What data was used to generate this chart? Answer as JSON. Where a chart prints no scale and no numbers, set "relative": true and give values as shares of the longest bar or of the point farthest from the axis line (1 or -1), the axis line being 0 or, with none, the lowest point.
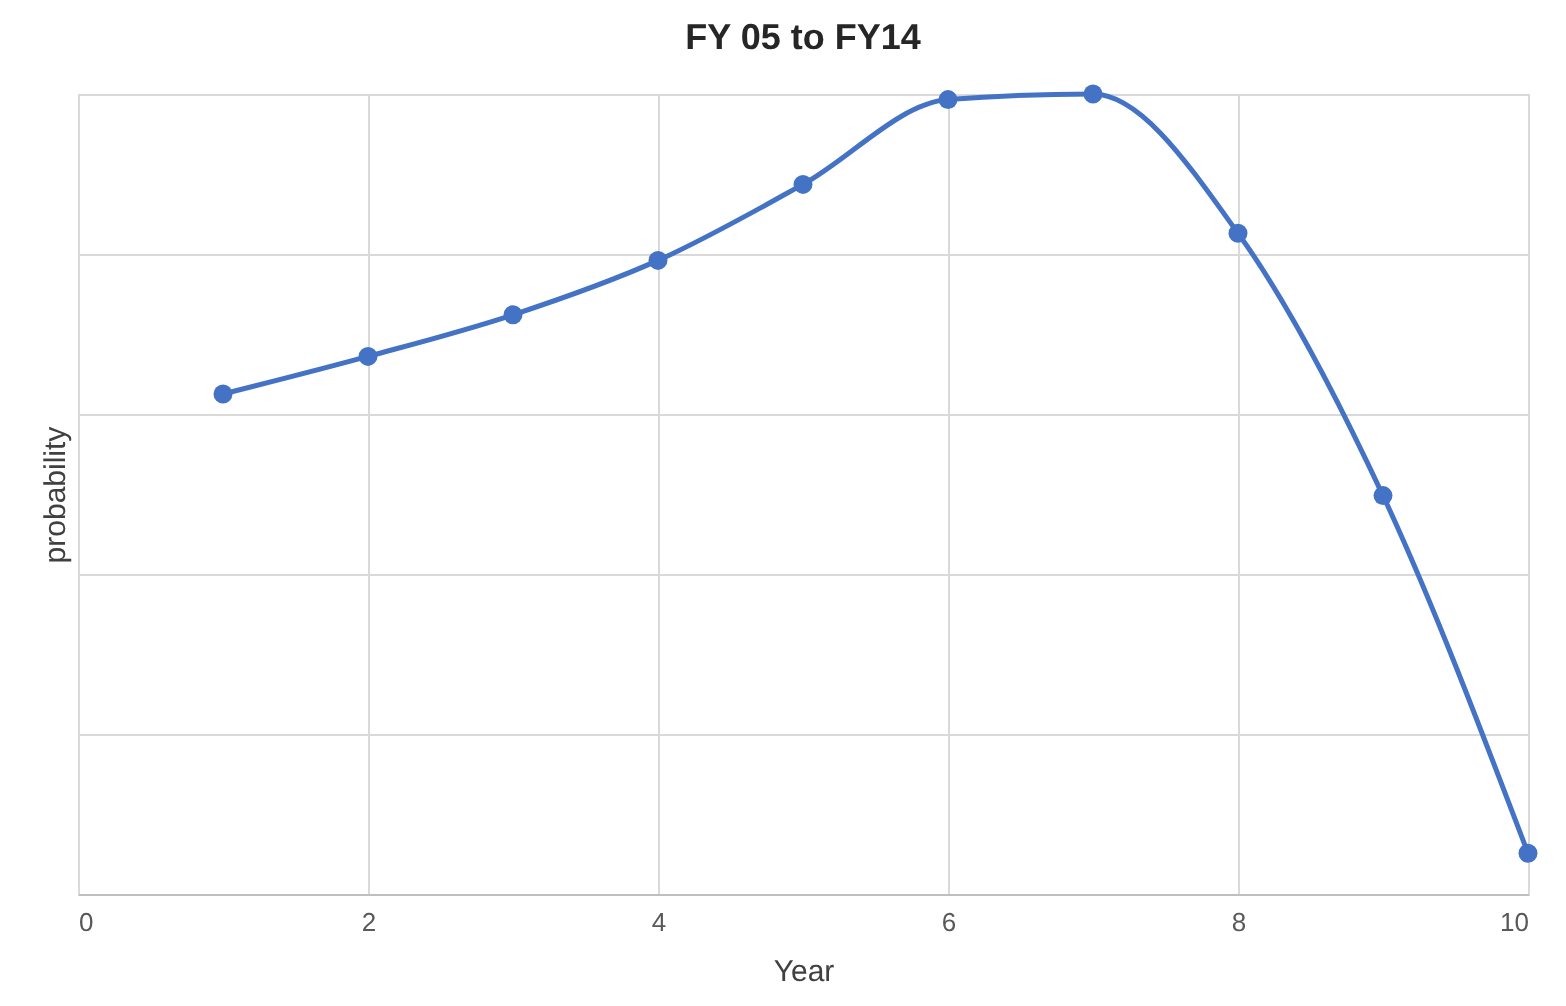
{
  "chart_data": {
    "type": "line",
    "title": "FY 05 to FY14",
    "xlabel": "Year",
    "ylabel": "probability",
    "relative": true,
    "x": [
      1,
      2,
      3,
      4,
      5,
      6,
      7,
      8,
      9,
      10
    ],
    "series": [
      {
        "color": "#4472c4",
        "values": [
          0.625,
          0.672,
          0.724,
          0.792,
          0.887,
          0.993,
          1,
          0.826,
          0.498,
          0.051
        ]
      }
    ],
    "xlim": [
      0,
      10
    ],
    "xticks": [
      0,
      2,
      4,
      6,
      8,
      10
    ],
    "grid": true,
    "marker": "circle",
    "line_style": "solid"
  }
}
